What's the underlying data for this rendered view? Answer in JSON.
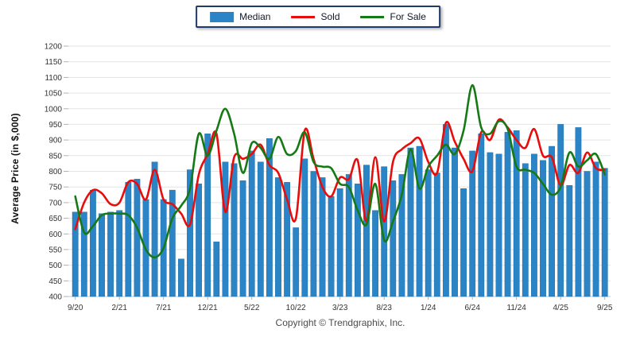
{
  "legend": {
    "items": [
      {
        "label": "Median",
        "type": "bar",
        "color": "#2b84c6"
      },
      {
        "label": "Sold",
        "type": "line",
        "color": "#e80c0c"
      },
      {
        "label": "For Sale",
        "type": "line",
        "color": "#157a15"
      }
    ]
  },
  "y_axis": {
    "title": "Average Price (in $,000)",
    "min": 400,
    "max": 1200,
    "step": 50,
    "ticks": [
      1200,
      1150,
      1100,
      1050,
      1000,
      950,
      900,
      850,
      800,
      750,
      700,
      650,
      600,
      550,
      500,
      450,
      400
    ]
  },
  "x_axis": {
    "tick_every": 5,
    "shown_labels": [
      "9/20",
      "2/21",
      "7/21",
      "12/21",
      "5/22",
      "10/22",
      "3/23",
      "8/23",
      "1/24",
      "6/24",
      "11/24",
      "4/25",
      "9/25"
    ]
  },
  "footer": {
    "copyright": "Copyright © Trendgraphix, Inc."
  },
  "colors": {
    "bar": "#2b84c6",
    "bar_edge": "#1a679f",
    "sold": "#e80c0c",
    "for_sale": "#157a15",
    "grid": "#e3e3e3",
    "axis": "#c6c6c6",
    "tick": "#b0b0b0",
    "tick_text": "#333333"
  },
  "chart_data": {
    "type": "bar",
    "title": "",
    "xlabel": "",
    "ylabel": "Average Price (in $,000)",
    "ylim": [
      400,
      1200
    ],
    "grid": true,
    "legend_position": "top-center",
    "categories": [
      "9/20",
      "10/20",
      "11/20",
      "12/20",
      "1/21",
      "2/21",
      "3/21",
      "4/21",
      "5/21",
      "6/21",
      "7/21",
      "8/21",
      "9/21",
      "10/21",
      "11/21",
      "12/21",
      "1/22",
      "2/22",
      "3/22",
      "4/22",
      "5/22",
      "6/22",
      "7/22",
      "8/22",
      "9/22",
      "10/22",
      "11/22",
      "12/22",
      "1/23",
      "2/23",
      "3/23",
      "4/23",
      "5/23",
      "6/23",
      "7/23",
      "8/23",
      "9/23",
      "10/23",
      "11/23",
      "12/23",
      "1/24",
      "2/24",
      "3/24",
      "4/24",
      "5/24",
      "6/24",
      "7/24",
      "8/24",
      "9/24",
      "10/24",
      "11/24",
      "12/24",
      "1/25",
      "2/25",
      "3/25",
      "4/25",
      "5/25",
      "6/25",
      "7/25",
      "8/25",
      "9/25"
    ],
    "series": [
      {
        "name": "Median",
        "type": "bar",
        "color": "#2b84c6",
        "values": [
          670,
          670,
          740,
          665,
          670,
          675,
          765,
          775,
          710,
          830,
          710,
          740,
          520,
          805,
          760,
          920,
          575,
          830,
          825,
          770,
          865,
          830,
          905,
          780,
          765,
          620,
          840,
          800,
          780,
          720,
          745,
          790,
          760,
          820,
          675,
          815,
          770,
          790,
          875,
          880,
          805,
          795,
          950,
          875,
          745,
          865,
          920,
          860,
          855,
          925,
          930,
          825,
          855,
          835,
          880,
          950,
          755,
          940,
          800,
          830,
          810
        ]
      },
      {
        "name": "Sold",
        "type": "line",
        "color": "#e80c0c",
        "values": [
          615,
          700,
          740,
          730,
          695,
          700,
          765,
          760,
          710,
          805,
          710,
          695,
          665,
          630,
          790,
          855,
          920,
          670,
          845,
          840,
          855,
          885,
          820,
          795,
          710,
          650,
          930,
          840,
          750,
          720,
          780,
          775,
          835,
          640,
          845,
          640,
          830,
          870,
          890,
          905,
          830,
          795,
          955,
          895,
          840,
          800,
          925,
          900,
          965,
          940,
          900,
          875,
          935,
          850,
          845,
          755,
          820,
          795,
          860,
          810,
          805
        ]
      },
      {
        "name": "For Sale",
        "type": "line",
        "color": "#157a15",
        "values": [
          720,
          605,
          625,
          660,
          665,
          665,
          660,
          620,
          550,
          525,
          555,
          650,
          690,
          745,
          920,
          850,
          930,
          1000,
          920,
          795,
          890,
          875,
          840,
          910,
          855,
          865,
          925,
          830,
          815,
          810,
          760,
          750,
          675,
          630,
          760,
          580,
          640,
          725,
          870,
          745,
          815,
          850,
          885,
          855,
          930,
          1075,
          940,
          920,
          960,
          935,
          815,
          805,
          795,
          760,
          725,
          750,
          860,
          815,
          835,
          855,
          790
        ]
      }
    ]
  }
}
